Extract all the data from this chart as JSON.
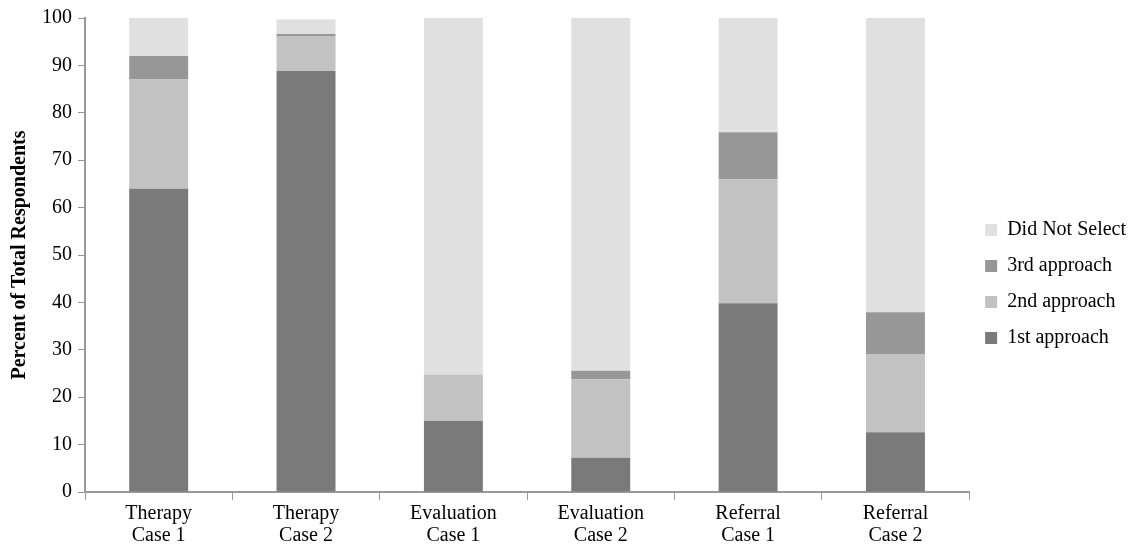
{
  "chart_data": {
    "type": "bar",
    "stacked": true,
    "ylabel": "Percent of Total Respondents",
    "categories": [
      "Therapy Case 1",
      "Therapy Case 2",
      "Evaluation Case 1",
      "Evaluation Case 2",
      "Referral Case 1",
      "Referral Case 2"
    ],
    "series": [
      {
        "name": "1st approach",
        "color": "#7a7a7a",
        "values": [
          64,
          88.8,
          15,
          7.2,
          39.8,
          12.6
        ]
      },
      {
        "name": "2nd approach",
        "color": "#c2c2c2",
        "values": [
          23,
          7.4,
          9.8,
          16.6,
          26.2,
          16.4
        ]
      },
      {
        "name": "3rd approach",
        "color": "#979797",
        "values": [
          5,
          0.4,
          0,
          1.8,
          9.9,
          8.9
        ]
      },
      {
        "name": "Did Not Select",
        "color": "#e0e0e0",
        "values": [
          8,
          3.1,
          75.2,
          74.4,
          24.1,
          62.1
        ]
      }
    ],
    "ylim": [
      0,
      100
    ],
    "yticks": [
      0,
      10,
      20,
      30,
      40,
      50,
      60,
      70,
      80,
      90,
      100
    ],
    "grid": false,
    "legend": "right"
  }
}
